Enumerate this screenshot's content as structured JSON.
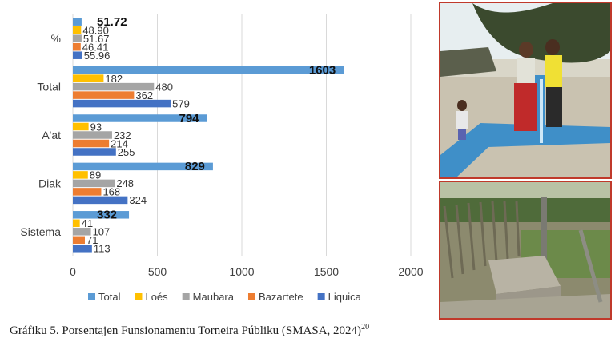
{
  "chart_data": {
    "type": "bar",
    "orientation": "horizontal",
    "categories": [
      "%",
      "Total",
      "A'at",
      "Diak",
      "Sistema"
    ],
    "series": [
      {
        "name": "Total",
        "color": "#5b9bd5",
        "values": [
          51.72,
          1603,
          794,
          829,
          332
        ]
      },
      {
        "name": "Loés",
        "color": "#ffc000",
        "values": [
          48.9,
          182,
          93,
          89,
          41
        ]
      },
      {
        "name": "Maubara",
        "color": "#a5a5a5",
        "values": [
          51.67,
          480,
          232,
          248,
          107
        ]
      },
      {
        "name": "Bazartete",
        "color": "#ed7d31",
        "values": [
          46.41,
          362,
          214,
          168,
          71
        ]
      },
      {
        "name": "Liquica",
        "color": "#4472c4",
        "values": [
          55.96,
          579,
          255,
          324,
          113
        ]
      }
    ],
    "value_labels": [
      [
        "51.72",
        "48.90",
        "51.67",
        "46.41",
        "55.96"
      ],
      [
        "1603",
        "182",
        "480",
        "362",
        "579"
      ],
      [
        "794",
        "93",
        "232",
        "214",
        "255"
      ],
      [
        "829",
        "89",
        "248",
        "168",
        "324"
      ],
      [
        "332",
        "41",
        "107",
        "71",
        "113"
      ]
    ],
    "xlim": [
      0,
      2000
    ],
    "xticks": [
      "0",
      "500",
      "1000",
      "1500",
      "2000"
    ],
    "xtick_values": [
      0,
      500,
      1000,
      1500,
      2000
    ],
    "grid": "vertical",
    "legend": "bottom"
  },
  "caption": {
    "text": "Gráfiku 5. Porsentajen Funsionamentu Torneira Públiku (SMASA, 2024)",
    "footnote": "20"
  },
  "photos": {
    "top": "water-tap-photo",
    "bottom": "tap-stand-photo"
  }
}
